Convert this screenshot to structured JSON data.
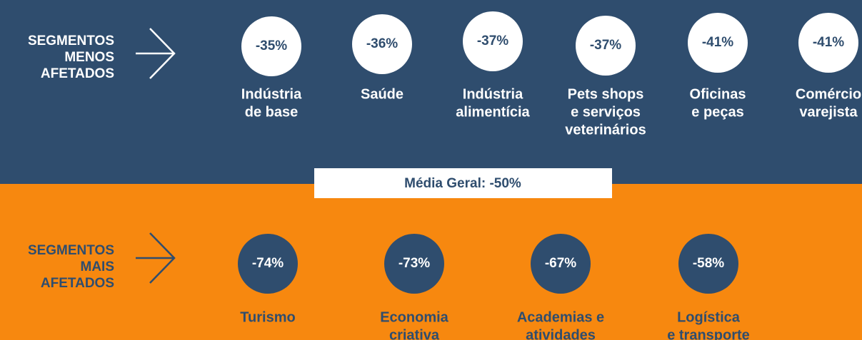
{
  "top": {
    "label": [
      "SEGMENTOS",
      "MENOS",
      "AFETADOS"
    ],
    "items": [
      {
        "percent": "-35%",
        "label": [
          "Indústria",
          "de base"
        ]
      },
      {
        "percent": "-36%",
        "label": [
          "Saúde"
        ]
      },
      {
        "percent": "-37%",
        "label": [
          "Indústria",
          "alimentícia"
        ]
      },
      {
        "percent": "-37%",
        "label": [
          "Pets shops",
          "e serviços",
          "veterinários"
        ]
      },
      {
        "percent": "-41%",
        "label": [
          "Oficinas",
          "e peças"
        ]
      },
      {
        "percent": "-41%",
        "label": [
          "Comércio",
          "varejista"
        ]
      }
    ]
  },
  "average": "Média Geral: -50%",
  "bottom": {
    "label": [
      "SEGMENTOS",
      "MAIS",
      "AFETADOS"
    ],
    "items": [
      {
        "percent": "-74%",
        "label": [
          "Turismo"
        ]
      },
      {
        "percent": "-73%",
        "label": [
          "Economia",
          "criativa"
        ]
      },
      {
        "percent": "-67%",
        "label": [
          "Academias e",
          "atividades"
        ]
      },
      {
        "percent": "-58%",
        "label": [
          "Logística",
          "e transporte"
        ]
      }
    ]
  }
}
